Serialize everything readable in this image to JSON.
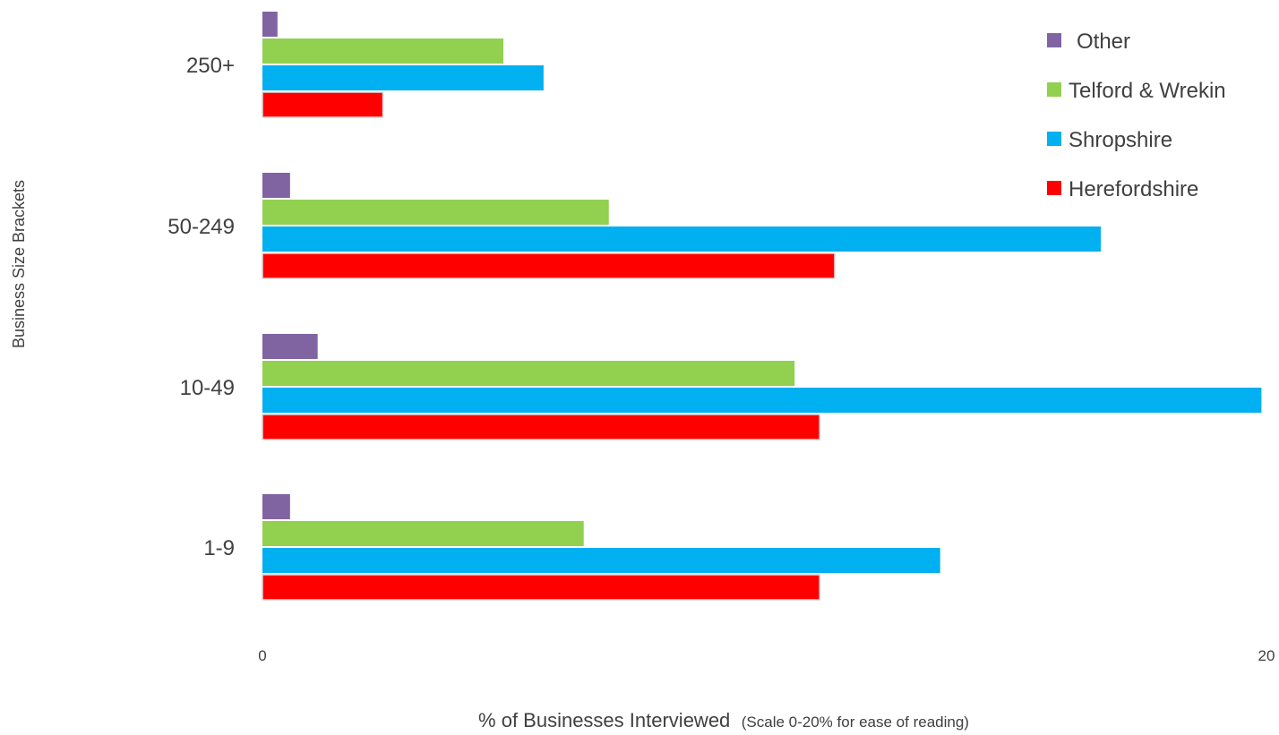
{
  "chart_data": {
    "type": "bar",
    "orientation": "horizontal",
    "categories": [
      "1-9",
      "10-49",
      "50-249",
      "250+"
    ],
    "series": [
      {
        "name": "Herefordshire",
        "color": "#ff0000",
        "values": [
          11.1,
          11.1,
          11.4,
          2.4
        ]
      },
      {
        "name": "Shropshire",
        "color": "#00b0f0",
        "values": [
          13.5,
          19.9,
          16.7,
          5.6
        ]
      },
      {
        "name": "Telford & Wrekin",
        "color": "#92d050",
        "values": [
          6.4,
          10.6,
          6.9,
          4.8
        ]
      },
      {
        "name": "Other",
        "color": "#8064a2",
        "values": [
          0.55,
          1.1,
          0.55,
          0.3
        ]
      }
    ],
    "xlim": [
      0,
      20
    ],
    "x_ticks": [
      "0",
      "20"
    ],
    "xlabel": "% of Businesses Interviewed",
    "xlabel_note": "(Scale 0-20% for ease of reading)",
    "ylabel": "Business Size Brackets",
    "legend_order": [
      "Other",
      "Telford & Wrekin",
      "Shropshire",
      "Herefordshire"
    ],
    "legend_position": "top-right",
    "grid": false
  }
}
